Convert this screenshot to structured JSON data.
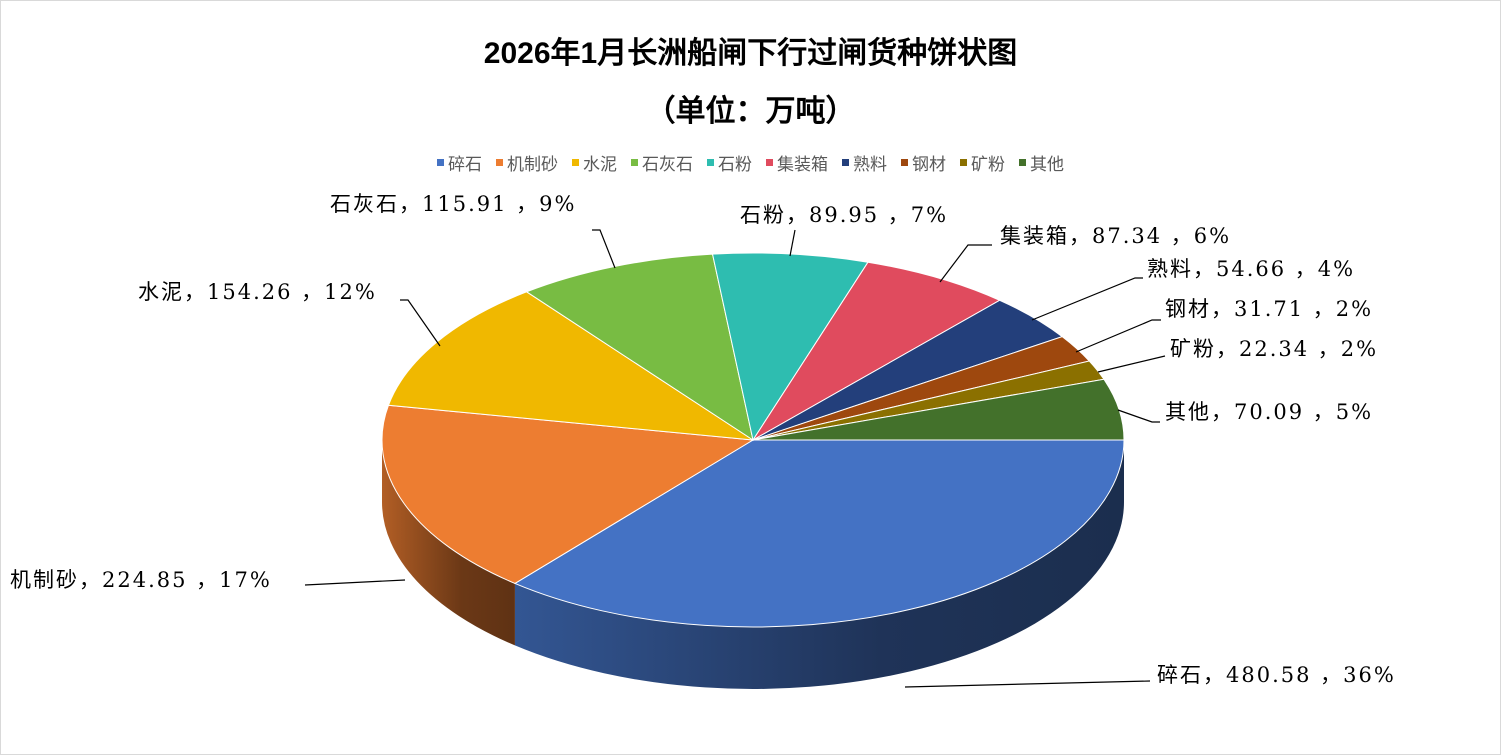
{
  "chart_data": {
    "type": "pie",
    "style": "3d",
    "title": "2026年1月长洲船闸下行过闸货种饼状图",
    "subtitle": "（单位：万吨）",
    "legend_position": "top",
    "categories": [
      "碎石",
      "机制砂",
      "水泥",
      "石灰石",
      "石粉",
      "集装箱",
      "熟料",
      "钢材",
      "矿粉",
      "其他"
    ],
    "values": [
      480.58,
      224.85,
      154.26,
      115.91,
      89.95,
      87.34,
      54.66,
      31.71,
      22.34,
      70.09
    ],
    "percent_labels": [
      "36%",
      "17%",
      "12%",
      "9%",
      "7%",
      "6%",
      "4%",
      "2%",
      "2%",
      "5%"
    ],
    "data_labels": [
      "碎石，480.58 ，36%",
      "机制砂，224.85 ，17%",
      "水泥，154.26 ，12%",
      "石灰石，115.91 ，9%",
      "石粉，89.95 ，7%",
      "集装箱，87.34 ，6%",
      "熟料，54.66 ，4%",
      "钢材，31.71 ，2%",
      "矿粉，22.34 ，2%",
      "其他，70.09 ，5%"
    ],
    "colors": [
      "#4472C4",
      "#ED7D31",
      "#F0B800",
      "#78BC43",
      "#2EBDB0",
      "#E04B5E",
      "#233F7B",
      "#9E480E",
      "#8B7000",
      "#43712B"
    ]
  }
}
